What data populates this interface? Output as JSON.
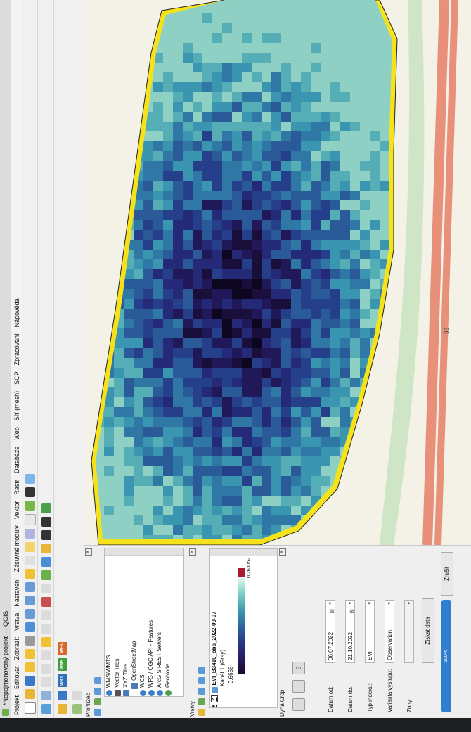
{
  "window": {
    "title": "*Nepojmenovaný projekt — QGIS"
  },
  "menu": [
    "Projekt",
    "Editovat",
    "Zobrazit",
    "Vrstva",
    "Nastavení",
    "Zásuvné moduly",
    "Vektor",
    "Rastr",
    "Databáze",
    "Web",
    "Síť (mesh)",
    "SCP",
    "Zpracování",
    "Nápověda"
  ],
  "browser": {
    "title": "Prohlížeč",
    "items": [
      "WMS/WMTS",
      "Vector Tiles",
      "XYZ Tiles",
      "OpenStreetMap",
      "WCS",
      "WFS / OGC API - Features",
      "ArcGIS REST Servers",
      "GeoNode"
    ]
  },
  "layers": {
    "title": "Vrstvy",
    "layer_name": "EVI_B3410_obs_2022-09-07",
    "band": "Kanál 1 (Gray)",
    "min": "0,6666",
    "max": "0,263052"
  },
  "crop": {
    "title": "Dyna Crop",
    "help": "?",
    "fields": [
      {
        "label": "Datum od:",
        "value": "06.07.2022"
      },
      {
        "label": "Datum do:",
        "value": "21.10.2022"
      },
      {
        "label": "Typ indexu:",
        "value": "EVI"
      },
      {
        "label": "Varianta výstupu:",
        "value": "Observation"
      },
      {
        "label": "Zóny:",
        "value": ""
      }
    ],
    "get_data": "Získat data",
    "progress_pct": 100,
    "progress_label": "100%",
    "cancel": "Zrušit"
  },
  "map": {
    "road_label": "38"
  },
  "toolbar_badges": [
    "WKT",
    "WMS",
    "WFS"
  ],
  "colors": {
    "accent": "#2e7fd1",
    "poly_outline": "#f5e21a"
  }
}
